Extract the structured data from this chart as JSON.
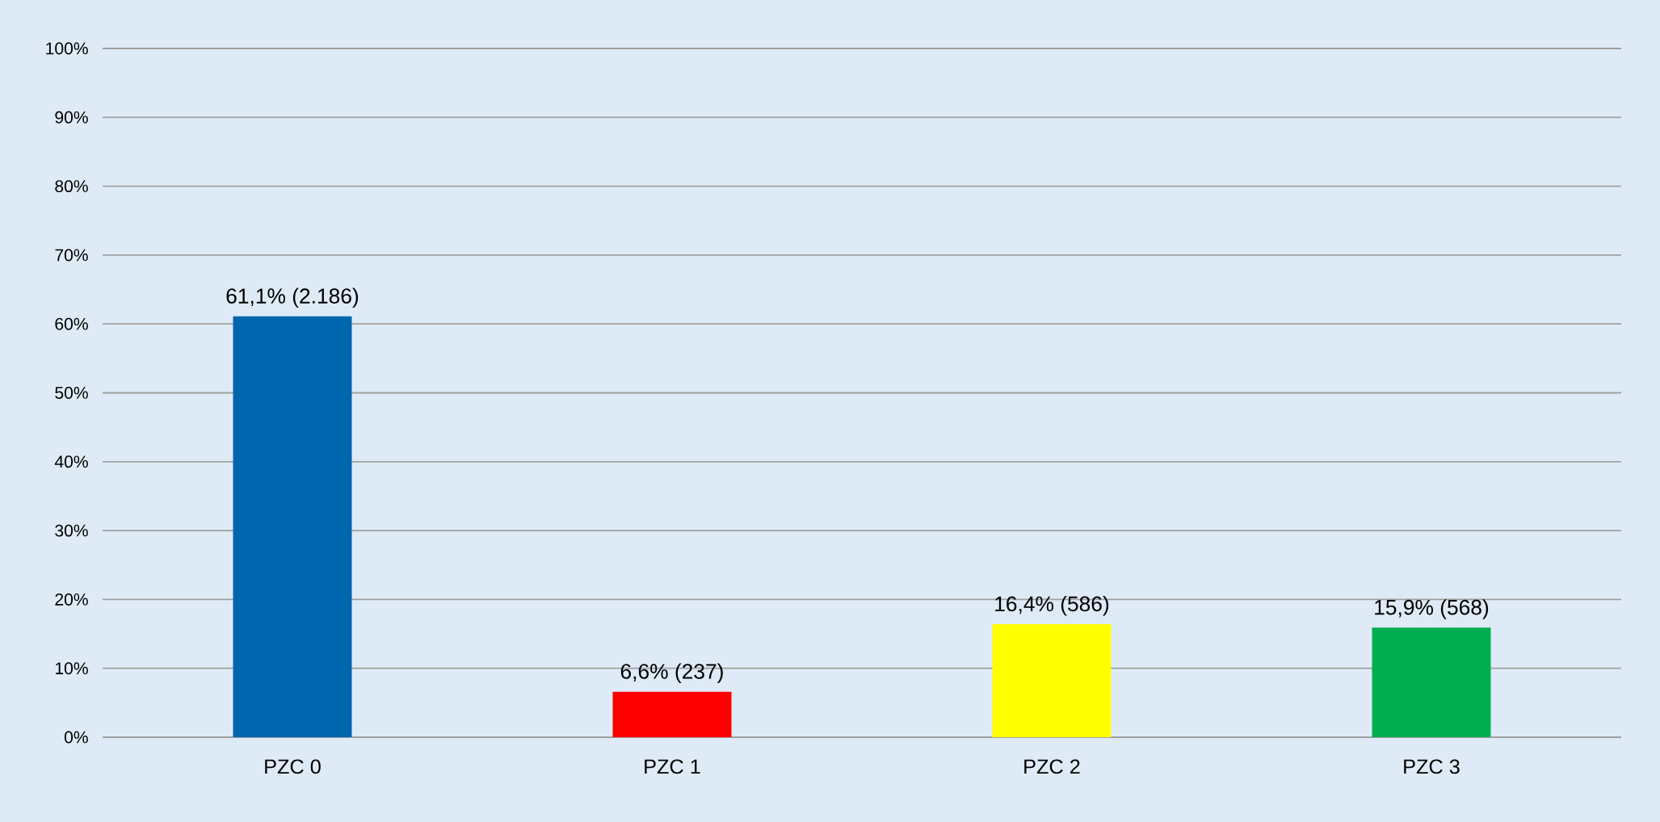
{
  "chart_data": {
    "type": "bar",
    "categories": [
      "PZC 0",
      "PZC 1",
      "PZC 2",
      "PZC 3"
    ],
    "values": [
      61.1,
      6.6,
      16.4,
      15.9
    ],
    "colors": [
      "#0066ae",
      "#ff0000",
      "#ffff00",
      "#00ae50"
    ],
    "value_labels": [
      "61,1% (2.186)",
      "6,6% (237)",
      "16,4% (586)",
      "15,9% (568)"
    ],
    "ylim": [
      0,
      100
    ],
    "yticks": [
      {
        "value": 0,
        "label": "0%"
      },
      {
        "value": 10,
        "label": "10%"
      },
      {
        "value": 20,
        "label": "20%"
      },
      {
        "value": 30,
        "label": "30%"
      },
      {
        "value": 40,
        "label": "40%"
      },
      {
        "value": 50,
        "label": "50%"
      },
      {
        "value": 60,
        "label": "60%"
      },
      {
        "value": 70,
        "label": "70%"
      },
      {
        "value": 80,
        "label": "80%"
      },
      {
        "value": 90,
        "label": "90%"
      },
      {
        "value": 100,
        "label": "100%"
      }
    ],
    "grid": "y"
  }
}
